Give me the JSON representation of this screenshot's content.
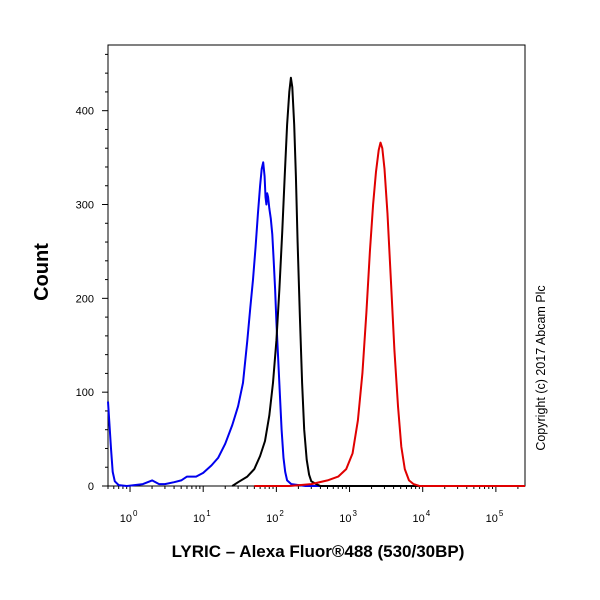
{
  "chart_data": {
    "type": "line",
    "xlabel": "LYRIC – Alexa Fluor®488 (530/30BP)",
    "ylabel": "Count",
    "x_scale": "log",
    "xlim": [
      0.5,
      250000
    ],
    "ylim": [
      0,
      470
    ],
    "x_ticks": [
      {
        "base": "10",
        "exp": "0",
        "value": 1
      },
      {
        "base": "10",
        "exp": "1",
        "value": 10
      },
      {
        "base": "10",
        "exp": "2",
        "value": 100
      },
      {
        "base": "10",
        "exp": "3",
        "value": 1000
      },
      {
        "base": "10",
        "exp": "4",
        "value": 10000
      },
      {
        "base": "10",
        "exp": "5",
        "value": 100000
      }
    ],
    "y_ticks": [
      {
        "label": "0",
        "value": 0
      },
      {
        "label": "100",
        "value": 100
      },
      {
        "label": "200",
        "value": 200
      },
      {
        "label": "300",
        "value": 300
      },
      {
        "label": "400",
        "value": 400
      }
    ],
    "grid": false,
    "series": [
      {
        "color": "#0000ee",
        "points": [
          [
            0.5,
            90
          ],
          [
            0.52,
            70
          ],
          [
            0.55,
            40
          ],
          [
            0.58,
            15
          ],
          [
            0.62,
            5
          ],
          [
            0.7,
            1
          ],
          [
            0.9,
            0
          ],
          [
            1.5,
            2
          ],
          [
            2.0,
            6
          ],
          [
            2.5,
            2
          ],
          [
            3.0,
            2
          ],
          [
            4.0,
            4
          ],
          [
            5.0,
            6
          ],
          [
            6.0,
            10
          ],
          [
            8.0,
            10
          ],
          [
            10,
            14
          ],
          [
            13,
            22
          ],
          [
            16,
            30
          ],
          [
            20,
            45
          ],
          [
            25,
            65
          ],
          [
            30,
            85
          ],
          [
            35,
            110
          ],
          [
            40,
            155
          ],
          [
            44,
            190
          ],
          [
            48,
            220
          ],
          [
            52,
            255
          ],
          [
            56,
            290
          ],
          [
            60,
            320
          ],
          [
            63,
            338
          ],
          [
            66,
            345
          ],
          [
            69,
            330
          ],
          [
            71,
            308
          ],
          [
            73,
            300
          ],
          [
            75,
            312
          ],
          [
            77,
            308
          ],
          [
            80,
            296
          ],
          [
            84,
            285
          ],
          [
            88,
            268
          ],
          [
            92,
            240
          ],
          [
            96,
            210
          ],
          [
            100,
            175
          ],
          [
            106,
            135
          ],
          [
            112,
            95
          ],
          [
            118,
            60
          ],
          [
            125,
            30
          ],
          [
            132,
            15
          ],
          [
            140,
            6
          ],
          [
            160,
            2
          ],
          [
            250,
            0
          ],
          [
            10000,
            0
          ],
          [
            250000,
            0
          ]
        ]
      },
      {
        "color": "#000000",
        "points": [
          [
            25,
            0
          ],
          [
            30,
            4
          ],
          [
            40,
            10
          ],
          [
            50,
            18
          ],
          [
            60,
            32
          ],
          [
            70,
            48
          ],
          [
            80,
            75
          ],
          [
            90,
            110
          ],
          [
            100,
            155
          ],
          [
            110,
            210
          ],
          [
            120,
            270
          ],
          [
            130,
            330
          ],
          [
            140,
            385
          ],
          [
            150,
            420
          ],
          [
            158,
            435
          ],
          [
            165,
            425
          ],
          [
            175,
            385
          ],
          [
            185,
            330
          ],
          [
            195,
            260
          ],
          [
            210,
            180
          ],
          [
            225,
            110
          ],
          [
            240,
            60
          ],
          [
            260,
            28
          ],
          [
            280,
            12
          ],
          [
            300,
            5
          ],
          [
            350,
            2
          ],
          [
            400,
            0
          ],
          [
            250000,
            0
          ]
        ]
      },
      {
        "color": "#e00000",
        "points": [
          [
            50,
            0
          ],
          [
            150,
            0
          ],
          [
            300,
            2
          ],
          [
            500,
            6
          ],
          [
            700,
            10
          ],
          [
            900,
            18
          ],
          [
            1100,
            35
          ],
          [
            1300,
            70
          ],
          [
            1500,
            120
          ],
          [
            1700,
            185
          ],
          [
            1900,
            250
          ],
          [
            2100,
            300
          ],
          [
            2300,
            335
          ],
          [
            2500,
            358
          ],
          [
            2650,
            366
          ],
          [
            2800,
            360
          ],
          [
            3000,
            338
          ],
          [
            3300,
            290
          ],
          [
            3700,
            215
          ],
          [
            4100,
            145
          ],
          [
            4600,
            85
          ],
          [
            5100,
            42
          ],
          [
            5700,
            18
          ],
          [
            6500,
            6
          ],
          [
            7500,
            2
          ],
          [
            9000,
            0
          ],
          [
            250000,
            0
          ]
        ]
      }
    ]
  },
  "annotations": {
    "copyright": "Copyright (c) 2017 Abcam Plc"
  }
}
